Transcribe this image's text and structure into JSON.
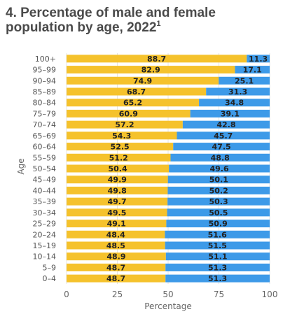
{
  "chart_data": {
    "type": "bar",
    "orientation": "horizontal",
    "stacked": true,
    "title": "4. Percentage of male and female population by age, 2022",
    "title_superscript": "1",
    "xlabel": "Percentage",
    "ylabel": "Age",
    "xlim": [
      0,
      100
    ],
    "xticks": [
      "0",
      "25",
      "50",
      "75",
      "100"
    ],
    "grid": true,
    "legend": "none",
    "categories": [
      "100+",
      "95–99",
      "90–94",
      "85–89",
      "80–84",
      "75–79",
      "70–74",
      "65–69",
      "60–64",
      "55–59",
      "50–54",
      "45–49",
      "40–44",
      "35–39",
      "30–34",
      "25–29",
      "20–24",
      "15–19",
      "10–14",
      "5–9",
      "0–4"
    ],
    "series": [
      {
        "color": "#f5c22c",
        "values": [
          88.7,
          82.9,
          74.9,
          68.7,
          65.2,
          60.9,
          57.2,
          54.3,
          52.5,
          51.2,
          50.4,
          49.9,
          49.8,
          49.7,
          49.5,
          49.1,
          48.4,
          48.5,
          48.9,
          48.7,
          48.7
        ],
        "labels": [
          "88.7",
          "82.9",
          "74.9",
          "68.7",
          "65.2",
          "60.9",
          "57.2",
          "54.3",
          "52.5",
          "51.2",
          "50.4",
          "49.9",
          "49.8",
          "49.7",
          "49.5",
          "49.1",
          "48.4",
          "48.5",
          "48.9",
          "48.7",
          "48.7"
        ]
      },
      {
        "color": "#3d9ae8",
        "values": [
          11.3,
          17.1,
          25.1,
          31.3,
          34.8,
          39.1,
          42.8,
          45.7,
          47.5,
          48.8,
          49.6,
          50.1,
          50.2,
          50.3,
          50.5,
          50.9,
          51.6,
          51.5,
          51.1,
          51.3,
          51.3
        ],
        "labels": [
          "11.3",
          "17.1",
          "25.1",
          "31.3",
          "34.8",
          "39.1",
          "42.8",
          "45.7",
          "47.5",
          "48.8",
          "49.6",
          "50.1",
          "50.2",
          "50.3",
          "50.5",
          "50.9",
          "51.6",
          "51.5",
          "51.1",
          "51.3",
          "51.3"
        ]
      }
    ]
  }
}
